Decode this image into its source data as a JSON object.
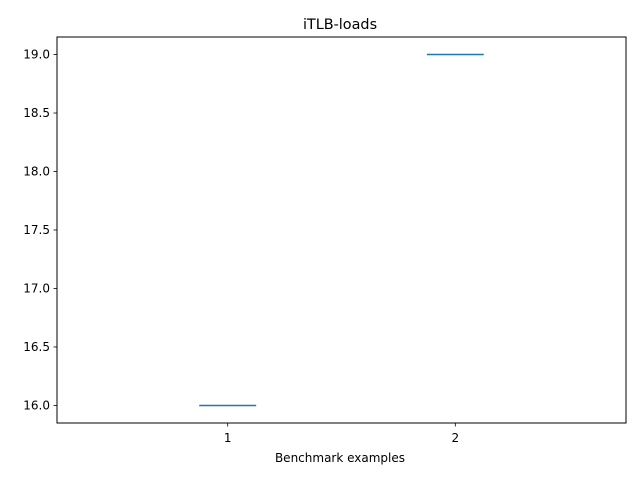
{
  "chart_data": {
    "type": "line",
    "title": "iTLB-loads",
    "xlabel": "Benchmark examples",
    "ylabel": "",
    "categories": [
      "1",
      "2"
    ],
    "x": [
      1,
      2
    ],
    "values": [
      16.0,
      19.0
    ],
    "xlim": [
      0.25,
      2.75
    ],
    "ylim": [
      15.85,
      19.15
    ],
    "yticks": [
      16.0,
      16.5,
      17.0,
      17.5,
      18.0,
      18.5,
      19.0
    ],
    "ytick_labels": [
      "16.0",
      "16.5",
      "17.0",
      "17.5",
      "18.0",
      "18.5",
      "19.0"
    ],
    "grid": false,
    "series_color": "#1f77b4"
  }
}
